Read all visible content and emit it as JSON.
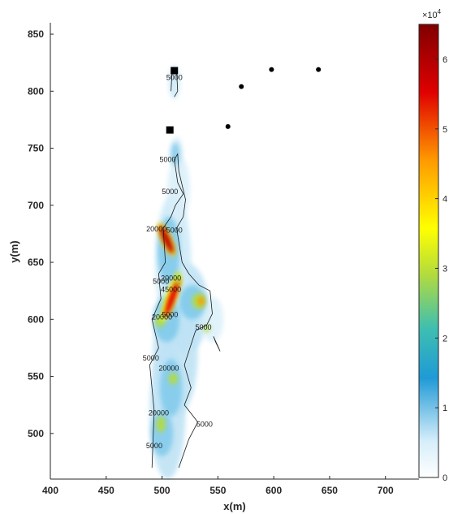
{
  "chart_data": {
    "type": "heatmap",
    "title": "",
    "xlabel": "x(m)",
    "ylabel": "y(m)",
    "xlim": [
      400,
      730
    ],
    "ylim": [
      460,
      860
    ],
    "xticks": [
      "400",
      "450",
      "500",
      "550",
      "600",
      "650",
      "700"
    ],
    "yticks": [
      "500",
      "550",
      "600",
      "650",
      "700",
      "750",
      "800",
      "850"
    ],
    "colorbar": {
      "range": [
        0,
        65000
      ],
      "ticks": [
        "0",
        "1",
        "2",
        "3",
        "4",
        "5",
        "6"
      ],
      "exponent_label": "×10",
      "exponent_power": "4",
      "colormap": [
        "#ffffff",
        "#1f9ad6",
        "#b4dc3c",
        "#ffff00",
        "#ff7f00",
        "#e00000",
        "#800000"
      ]
    },
    "contour_labels": [
      {
        "text": "5000",
        "x": 511,
        "y": 810
      },
      {
        "text": "5000",
        "x": 505,
        "y": 738
      },
      {
        "text": "5000",
        "x": 507,
        "y": 710
      },
      {
        "text": "20000",
        "x": 495,
        "y": 677
      },
      {
        "text": "5000",
        "x": 511,
        "y": 676
      },
      {
        "text": "20000",
        "x": 508,
        "y": 634
      },
      {
        "text": "5000",
        "x": 499,
        "y": 631
      },
      {
        "text": "45000",
        "x": 508,
        "y": 624
      },
      {
        "text": "20000",
        "x": 500,
        "y": 600
      },
      {
        "text": "5000",
        "x": 507,
        "y": 602
      },
      {
        "text": "5000",
        "x": 537,
        "y": 591
      },
      {
        "text": "5000",
        "x": 490,
        "y": 564
      },
      {
        "text": "20000",
        "x": 506,
        "y": 555
      },
      {
        "text": "20000",
        "x": 497,
        "y": 516
      },
      {
        "text": "5000",
        "x": 538,
        "y": 506
      },
      {
        "text": "5000",
        "x": 493,
        "y": 487
      }
    ],
    "points_circle": [
      {
        "x": 571,
        "y": 804
      },
      {
        "x": 598,
        "y": 819
      },
      {
        "x": 640,
        "y": 819
      },
      {
        "x": 559,
        "y": 769
      }
    ],
    "points_square": [
      {
        "x": 511,
        "y": 818
      },
      {
        "x": 507,
        "y": 766
      }
    ]
  }
}
